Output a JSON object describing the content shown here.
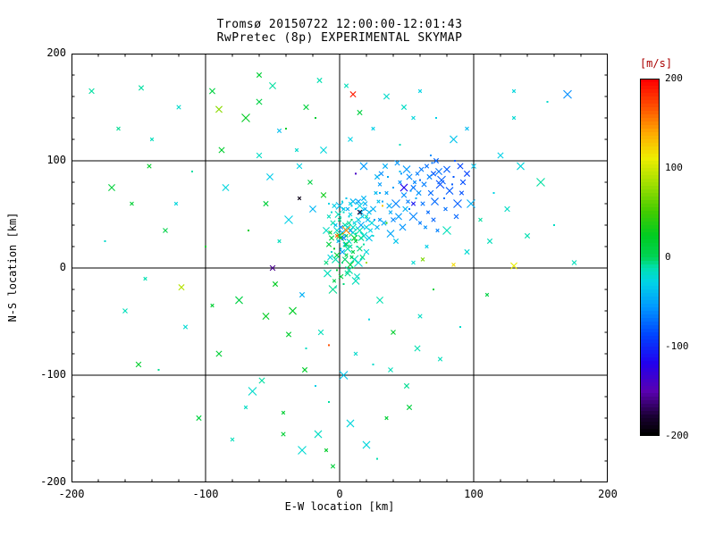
{
  "page": {
    "background": "#ffffff",
    "foreground": "#000000"
  },
  "title": {
    "line1": "Tromsø 20150722 12:00:00-12:01:43",
    "line2": "RwPretec (8p) EXPERIMENTAL SKYMAP"
  },
  "chart_data": {
    "type": "scatter",
    "title": "Tromsø 20150722 12:00:00-12:01:43",
    "subtitle": "RwPretec (8p) EXPERIMENTAL SKYMAP",
    "xlabel": "E-W location [km]",
    "ylabel": "N-S location [km]",
    "xlim": [
      -200,
      200
    ],
    "ylim": [
      -200,
      200
    ],
    "xticks": [
      -200,
      -100,
      0,
      100,
      200
    ],
    "yticks": [
      -200,
      -100,
      0,
      100,
      200
    ],
    "grid": true,
    "marker": "x",
    "colorbar": {
      "label": "[m/s]",
      "label_color": "#aa0000",
      "min": -200,
      "max": 200,
      "ticks": [
        200,
        100,
        0,
        -100,
        -200
      ],
      "stops": [
        [
          0.0,
          "#000000"
        ],
        [
          0.05,
          "#1a0033"
        ],
        [
          0.12,
          "#5a00b0"
        ],
        [
          0.2,
          "#2200ee"
        ],
        [
          0.28,
          "#0044ff"
        ],
        [
          0.36,
          "#0099ff"
        ],
        [
          0.43,
          "#00d4e6"
        ],
        [
          0.47,
          "#00e0b0"
        ],
        [
          0.5,
          "#00d455"
        ],
        [
          0.56,
          "#00cc22"
        ],
        [
          0.63,
          "#44cc00"
        ],
        [
          0.7,
          "#99dd00"
        ],
        [
          0.78,
          "#eeee00"
        ],
        [
          0.85,
          "#ffaa00"
        ],
        [
          0.92,
          "#ff5500"
        ],
        [
          1.0,
          "#ff0000"
        ]
      ]
    },
    "points": [
      [
        2,
        5,
        -5
      ],
      [
        5,
        12,
        3
      ],
      [
        -3,
        8,
        -12
      ],
      [
        8,
        20,
        -8
      ],
      [
        1,
        28,
        5
      ],
      [
        -6,
        15,
        -20
      ],
      [
        10,
        33,
        -15
      ],
      [
        4,
        40,
        -10
      ],
      [
        12,
        25,
        2
      ],
      [
        -2,
        35,
        -18
      ],
      [
        7,
        48,
        -25
      ],
      [
        15,
        18,
        -5
      ],
      [
        -8,
        22,
        8
      ],
      [
        3,
        55,
        -30
      ],
      [
        18,
        30,
        -22
      ],
      [
        0,
        2,
        0
      ],
      [
        6,
        -5,
        -8
      ],
      [
        -4,
        -12,
        5
      ],
      [
        11,
        8,
        -14
      ],
      [
        14,
        45,
        -28
      ],
      [
        9,
        58,
        -35
      ],
      [
        -1,
        50,
        -15
      ],
      [
        16,
        52,
        -40
      ],
      [
        20,
        38,
        -30
      ],
      [
        -5,
        42,
        -12
      ],
      [
        2,
        62,
        -25
      ],
      [
        8,
        3,
        10
      ],
      [
        -10,
        5,
        -5
      ],
      [
        13,
        -8,
        -18
      ],
      [
        5,
        30,
        -2
      ],
      [
        1,
        18,
        -28
      ],
      [
        17,
        10,
        -8
      ],
      [
        -7,
        33,
        15
      ],
      [
        22,
        28,
        -35
      ],
      [
        19,
        60,
        -45
      ],
      [
        -3,
        -18,
        -10
      ],
      [
        6,
        38,
        -22
      ],
      [
        10,
        15,
        5
      ],
      [
        -9,
        -5,
        -15
      ],
      [
        4,
        22,
        -32
      ],
      [
        12,
        55,
        -38
      ],
      [
        0,
        45,
        -8
      ],
      [
        15,
        35,
        -12
      ],
      [
        -6,
        28,
        3
      ],
      [
        8,
        50,
        -28
      ],
      [
        3,
        -15,
        -5
      ],
      [
        21,
        45,
        -40
      ],
      [
        -2,
        12,
        12
      ],
      [
        7,
        25,
        -18
      ],
      [
        11,
        42,
        -25
      ],
      [
        18,
        22,
        -10
      ],
      [
        -4,
        58,
        -30
      ],
      [
        2,
        33,
        -45
      ],
      [
        9,
        10,
        0
      ],
      [
        14,
        5,
        -20
      ],
      [
        5,
        65,
        -35
      ],
      [
        -8,
        48,
        -15
      ],
      [
        16,
        40,
        -50
      ],
      [
        1,
        -8,
        8
      ],
      [
        20,
        15,
        -25
      ],
      [
        12,
        32,
        -8
      ],
      [
        -1,
        25,
        -38
      ],
      [
        6,
        18,
        -12
      ],
      [
        23,
        35,
        -28
      ],
      [
        10,
        62,
        -42
      ],
      [
        3,
        52,
        -18
      ],
      [
        -5,
        -20,
        -8
      ],
      [
        8,
        35,
        -55
      ],
      [
        17,
        48,
        -32
      ],
      [
        0,
        30,
        18
      ],
      [
        13,
        20,
        -15
      ],
      [
        -7,
        10,
        -25
      ],
      [
        4,
        8,
        -3
      ],
      [
        19,
        55,
        -48
      ],
      [
        7,
        -2,
        -10
      ],
      [
        25,
        30,
        -20
      ],
      [
        11,
        28,
        22
      ],
      [
        -3,
        40,
        -35
      ],
      [
        15,
        58,
        -28
      ],
      [
        2,
        15,
        -50
      ],
      [
        9,
        45,
        -5
      ],
      [
        -10,
        35,
        -18
      ],
      [
        22,
        52,
        -38
      ],
      [
        5,
        22,
        7
      ],
      [
        18,
        65,
        -42
      ],
      [
        -6,
        52,
        -22
      ],
      [
        12,
        -12,
        -15
      ],
      [
        1,
        38,
        -60
      ],
      [
        16,
        28,
        -8
      ],
      [
        8,
        60,
        -30
      ],
      [
        -2,
        -2,
        15
      ],
      [
        24,
        42,
        -25
      ],
      [
        6,
        55,
        -45
      ],
      [
        10,
        38,
        -18
      ],
      [
        3,
        28,
        -70
      ],
      [
        -8,
        60,
        -28
      ],
      [
        14,
        62,
        -52
      ],
      [
        20,
        48,
        -15
      ],
      [
        0,
        58,
        -38
      ],
      [
        7,
        42,
        -8
      ],
      [
        -4,
        18,
        25
      ],
      [
        30,
        45,
        -55
      ],
      [
        42,
        60,
        -65
      ],
      [
        55,
        75,
        -70
      ],
      [
        38,
        52,
        -48
      ],
      [
        60,
        82,
        -75
      ],
      [
        28,
        38,
        -42
      ],
      [
        48,
        68,
        -60
      ],
      [
        70,
        88,
        -80
      ],
      [
        35,
        70,
        -52
      ],
      [
        52,
        55,
        -68
      ],
      [
        65,
        95,
        -72
      ],
      [
        25,
        55,
        -45
      ],
      [
        45,
        80,
        -58
      ],
      [
        75,
        78,
        -85
      ],
      [
        32,
        62,
        -50
      ],
      [
        58,
        88,
        -66
      ],
      [
        80,
        92,
        -78
      ],
      [
        40,
        45,
        -62
      ],
      [
        68,
        70,
        -74
      ],
      [
        85,
        85,
        -82
      ],
      [
        27,
        70,
        -40
      ],
      [
        50,
        92,
        -56
      ],
      [
        62,
        60,
        -70
      ],
      [
        90,
        95,
        -88
      ],
      [
        36,
        85,
        -48
      ],
      [
        55,
        48,
        -64
      ],
      [
        72,
        100,
        -76
      ],
      [
        30,
        78,
        -54
      ],
      [
        47,
        38,
        -58
      ],
      [
        78,
        65,
        -72
      ],
      [
        92,
        80,
        -85
      ],
      [
        34,
        95,
        -46
      ],
      [
        60,
        42,
        -68
      ],
      [
        82,
        72,
        -80
      ],
      [
        26,
        45,
        -52
      ],
      [
        52,
        85,
        -62
      ],
      [
        66,
        52,
        -74
      ],
      [
        88,
        60,
        -78
      ],
      [
        43,
        98,
        -56
      ],
      [
        57,
        65,
        -48
      ],
      [
        74,
        90,
        -70
      ],
      [
        31,
        88,
        -60
      ],
      [
        49,
        55,
        -44
      ],
      [
        63,
        78,
        -66
      ],
      [
        86,
        100,
        -82
      ],
      [
        38,
        32,
        -50
      ],
      [
        70,
        45,
        -76
      ],
      [
        95,
        88,
        -90
      ],
      [
        29,
        62,
        -38
      ],
      [
        53,
        72,
        -58
      ],
      [
        67,
        85,
        -64
      ],
      [
        79,
        55,
        -72
      ],
      [
        44,
        48,
        -54
      ],
      [
        61,
        92,
        -68
      ],
      [
        84,
        78,
        -80
      ],
      [
        33,
        42,
        -46
      ],
      [
        56,
        80,
        -62
      ],
      [
        71,
        62,
        -74
      ],
      [
        91,
        70,
        -84
      ],
      [
        40,
        75,
        -52
      ],
      [
        64,
        38,
        -60
      ],
      [
        76,
        82,
        -78
      ],
      [
        28,
        85,
        -44
      ],
      [
        51,
        62,
        -66
      ],
      [
        69,
        98,
        -70
      ],
      [
        87,
        48,
        -76
      ],
      [
        37,
        58,
        -48
      ],
      [
        59,
        70,
        -58
      ],
      [
        73,
        35,
        -64
      ],
      [
        46,
        88,
        -56
      ],
      [
        -120,
        150,
        -20
      ],
      [
        -95,
        165,
        10
      ],
      [
        -140,
        120,
        -15
      ],
      [
        -70,
        140,
        25
      ],
      [
        -110,
        90,
        -10
      ],
      [
        -155,
        60,
        15
      ],
      [
        -85,
        75,
        -25
      ],
      [
        -130,
        35,
        5
      ],
      [
        -60,
        105,
        -18
      ],
      [
        -100,
        20,
        20
      ],
      [
        -145,
        -10,
        -12
      ],
      [
        -75,
        -30,
        8
      ],
      [
        -115,
        -55,
        -22
      ],
      [
        -90,
        -80,
        15
      ],
      [
        -135,
        -95,
        -8
      ],
      [
        -65,
        -115,
        -20
      ],
      [
        -105,
        -140,
        10
      ],
      [
        -80,
        -160,
        -15
      ],
      [
        -50,
        170,
        -10
      ],
      [
        -40,
        130,
        20
      ],
      [
        -30,
        95,
        -28
      ],
      [
        -55,
        60,
        12
      ],
      [
        -45,
        25,
        -15
      ],
      [
        -35,
        -40,
        22
      ],
      [
        -25,
        -75,
        -18
      ],
      [
        -58,
        -105,
        -10
      ],
      [
        -42,
        -135,
        15
      ],
      [
        -28,
        -170,
        -22
      ],
      [
        -15,
        175,
        -12
      ],
      [
        -18,
        140,
        18
      ],
      [
        -12,
        110,
        -25
      ],
      [
        -22,
        80,
        8
      ],
      [
        -14,
        -60,
        -15
      ],
      [
        -26,
        -95,
        20
      ],
      [
        -8,
        -125,
        -10
      ],
      [
        -16,
        -155,
        -18
      ],
      [
        -5,
        -185,
        12
      ],
      [
        35,
        160,
        -20
      ],
      [
        25,
        130,
        -30
      ],
      [
        45,
        115,
        -15
      ],
      [
        15,
        145,
        10
      ],
      [
        55,
        140,
        -25
      ],
      [
        30,
        -30,
        -12
      ],
      [
        40,
        -60,
        18
      ],
      [
        25,
        -90,
        -20
      ],
      [
        50,
        -110,
        -8
      ],
      [
        35,
        -140,
        15
      ],
      [
        20,
        -165,
        -25
      ],
      [
        60,
        -45,
        -18
      ],
      [
        70,
        -20,
        10
      ],
      [
        65,
        20,
        -30
      ],
      [
        80,
        35,
        -15
      ],
      [
        95,
        15,
        -22
      ],
      [
        105,
        45,
        -10
      ],
      [
        115,
        70,
        -28
      ],
      [
        100,
        95,
        -35
      ],
      [
        125,
        55,
        -18
      ],
      [
        140,
        30,
        -12
      ],
      [
        110,
        -25,
        8
      ],
      [
        90,
        -55,
        -20
      ],
      [
        75,
        -85,
        -15
      ],
      [
        120,
        105,
        -30
      ],
      [
        130,
        140,
        -22
      ],
      [
        150,
        80,
        -10
      ],
      [
        160,
        40,
        -18
      ],
      [
        -165,
        130,
        -8
      ],
      [
        -170,
        75,
        12
      ],
      [
        -160,
        -40,
        -15
      ],
      [
        -150,
        -90,
        18
      ],
      [
        -175,
        25,
        -20
      ],
      [
        60,
        165,
        -28
      ],
      [
        85,
        120,
        -35
      ],
      [
        5,
        170,
        -15
      ],
      [
        -60,
        155,
        8
      ],
      [
        45,
        90,
        -40
      ],
      [
        -38,
        45,
        -30
      ],
      [
        -48,
        -15,
        25
      ],
      [
        55,
        5,
        -22
      ],
      [
        -20,
        55,
        -42
      ],
      [
        30,
        70,
        -48
      ],
      [
        -12,
        68,
        30
      ],
      [
        42,
        25,
        -35
      ],
      [
        -32,
        110,
        -20
      ],
      [
        18,
        95,
        -55
      ],
      [
        68,
        105,
        -60
      ],
      [
        -88,
        110,
        18
      ],
      [
        -122,
        60,
        -25
      ],
      [
        98,
        60,
        -45
      ],
      [
        112,
        25,
        -15
      ],
      [
        -68,
        35,
        22
      ],
      [
        -52,
        85,
        -32
      ],
      [
        8,
        120,
        -28
      ],
      [
        -25,
        150,
        12
      ],
      [
        48,
        150,
        -18
      ],
      [
        72,
        140,
        -30
      ],
      [
        135,
        95,
        -25
      ],
      [
        -142,
        95,
        20
      ],
      [
        58,
        -75,
        -12
      ],
      [
        -95,
        -35,
        15
      ],
      [
        22,
        -48,
        -28
      ],
      [
        -38,
        -62,
        18
      ],
      [
        12,
        -80,
        -20
      ],
      [
        -55,
        -45,
        25
      ],
      [
        38,
        -95,
        -15
      ],
      [
        -18,
        -110,
        -30
      ],
      [
        52,
        -130,
        10
      ],
      [
        -70,
        -130,
        -18
      ],
      [
        8,
        -145,
        -25
      ],
      [
        -42,
        -155,
        15
      ],
      [
        28,
        -178,
        -12
      ],
      [
        -10,
        -170,
        20
      ],
      [
        3,
        -100,
        -35
      ],
      [
        -28,
        -25,
        -45
      ],
      [
        95,
        130,
        -40
      ],
      [
        155,
        155,
        -20
      ],
      [
        175,
        5,
        -15
      ],
      [
        -185,
        165,
        -10
      ],
      [
        -60,
        180,
        15
      ],
      [
        130,
        165,
        -25
      ],
      [
        35,
        42,
        40
      ],
      [
        -45,
        128,
        -38
      ],
      [
        10,
        162,
        190
      ],
      [
        -30,
        65,
        -190
      ],
      [
        5,
        35,
        150
      ],
      [
        -8,
        -72,
        170
      ],
      [
        85,
        3,
        120
      ],
      [
        130,
        2,
        110
      ],
      [
        15,
        52,
        -180
      ],
      [
        -50,
        0,
        -160
      ],
      [
        32,
        58,
        130
      ],
      [
        -2,
        30,
        160
      ],
      [
        48,
        75,
        -120
      ],
      [
        55,
        60,
        -110
      ],
      [
        -118,
        -18,
        90
      ],
      [
        12,
        88,
        -140
      ],
      [
        170,
        162,
        -60
      ],
      [
        -148,
        168,
        -10
      ],
      [
        62,
        8,
        70
      ],
      [
        -90,
        148,
        75
      ],
      [
        20,
        5,
        85
      ]
    ]
  }
}
